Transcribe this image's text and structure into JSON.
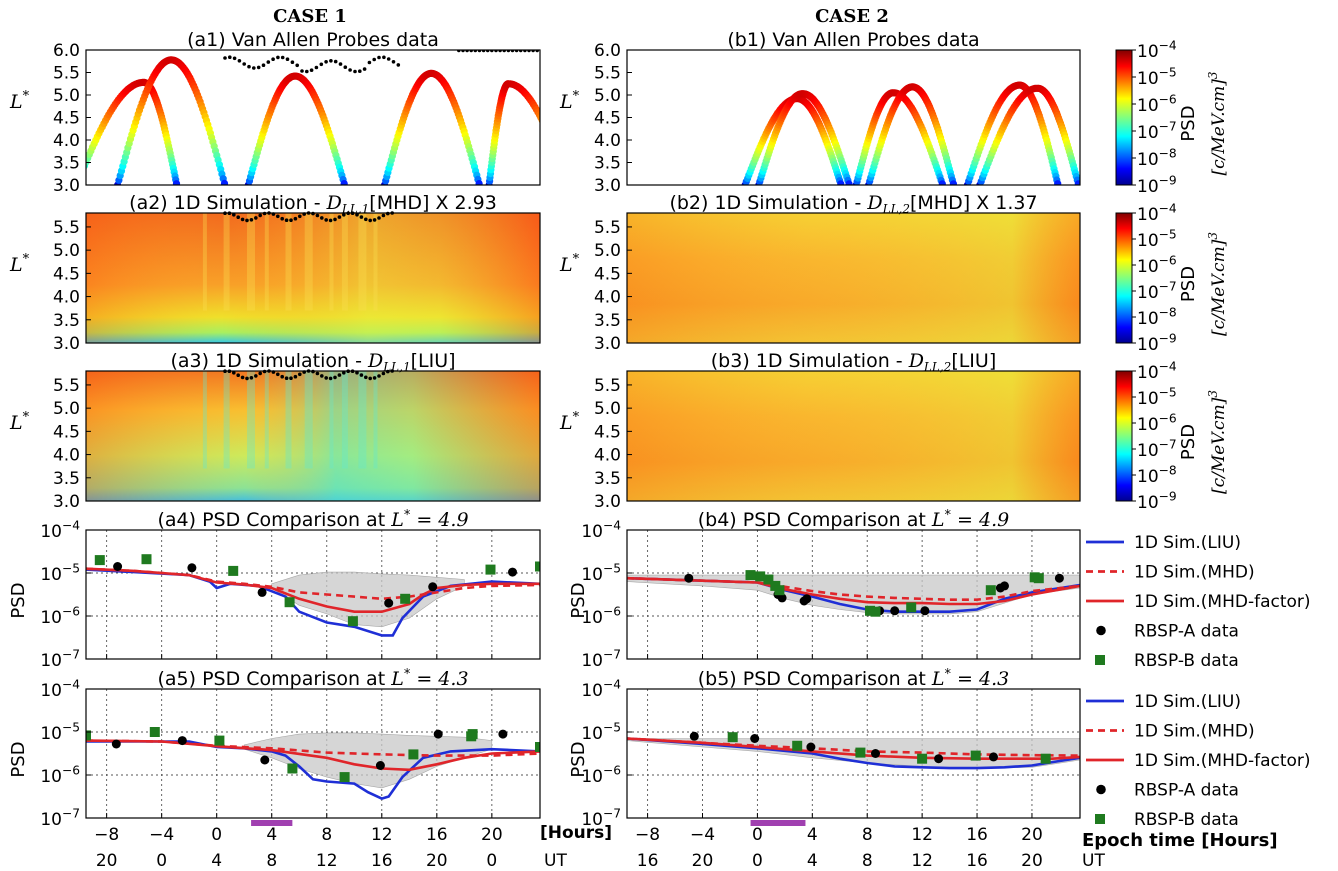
{
  "case_headers": [
    "CASE 1",
    "CASE 2"
  ],
  "colorbar": {
    "label": "PSD",
    "units": "[c/MeV.cm]^3",
    "ticks": [
      "10-4",
      "10-5",
      "10-6",
      "10-7",
      "10-8",
      "10-9"
    ]
  },
  "legend": {
    "entries": [
      {
        "label": "1D Sim.(LIU)",
        "color": "#1f2fd6",
        "style": "solid"
      },
      {
        "label": "1D Sim.(MHD)",
        "color": "#e0252a",
        "style": "dashed"
      },
      {
        "label": "1D Sim.(MHD-factor)",
        "color": "#e0252a",
        "style": "solid"
      },
      {
        "label": "RBSP-A data",
        "color": "#000000",
        "style": "circle"
      },
      {
        "label": "RBSP-B data",
        "color": "#1f7a1f",
        "style": "square"
      }
    ]
  },
  "axis_labels": {
    "lstar": "L*",
    "psd": "PSD",
    "hours_left": "[Hours]",
    "epoch_right": "Epoch time [Hours]",
    "ut_left": "UT",
    "ut_right": "UT"
  },
  "chart_data": [
    {
      "id": "a1",
      "type": "scatter",
      "title": "(a1) Van Allen Probes data",
      "ylabel": "L*",
      "ylim": [
        3.0,
        6.0
      ],
      "y_ticks": [
        "6.0",
        "5.5",
        "5.0",
        "4.5",
        "4.0",
        "3.5",
        "3.0"
      ],
      "x_range": [
        -9.5,
        23.5
      ],
      "orbit_apexes": [
        {
          "start": -10.2,
          "apex": -5.3,
          "end": -2.9,
          "peak": 5.28
        },
        {
          "start": -7.2,
          "apex": -3.3,
          "end": 0.6,
          "peak": 5.78
        },
        {
          "start": 2.3,
          "apex": 5.7,
          "end": 9.3,
          "peak": 5.42
        },
        {
          "start": 12.2,
          "apex": 15.6,
          "end": 19.1,
          "peak": 5.48
        },
        {
          "start": 19.8,
          "apex": 21.2,
          "end": 25.6,
          "peak": 5.25
        }
      ]
    },
    {
      "id": "b1",
      "type": "scatter",
      "title": "(b1) Van Allen Probes data",
      "ylabel": "L*",
      "ylim": [
        3.0,
        6.0
      ],
      "y_ticks": [
        "6.0",
        "5.5",
        "5.0",
        "4.5",
        "4.0",
        "3.5",
        "3.0"
      ],
      "x_range": [
        -9.5,
        23.5
      ],
      "orbit_apexes": [
        {
          "start": -0.9,
          "apex": 2.9,
          "end": 6.1,
          "peak": 4.92
        },
        {
          "start": 0.1,
          "apex": 3.3,
          "end": 6.7,
          "peak": 5.03
        },
        {
          "start": 7.2,
          "apex": 9.9,
          "end": 13.5,
          "peak": 5.05
        },
        {
          "start": 8.1,
          "apex": 11.3,
          "end": 14.3,
          "peak": 5.18
        },
        {
          "start": 15.3,
          "apex": 19.1,
          "end": 21.9,
          "peak": 5.22
        },
        {
          "start": 16.2,
          "apex": 20.4,
          "end": 23.4,
          "peak": 5.15
        }
      ]
    },
    {
      "id": "a2",
      "type": "heatmap",
      "title": "(a2) 1D Simulation - D_LL,1[MHD] X 2.93",
      "ylabel": "L*",
      "ylim": [
        3.0,
        5.8
      ],
      "y_ticks": [
        "5.5",
        "5.0",
        "4.5",
        "4.0",
        "3.5",
        "3.0"
      ]
    },
    {
      "id": "b2",
      "type": "heatmap",
      "title": "(b2) 1D Simulation - D_LL,2[MHD] X 1.37",
      "ylabel": "L*",
      "ylim": [
        3.0,
        5.8
      ],
      "y_ticks": [
        "5.5",
        "5.0",
        "4.5",
        "4.0",
        "3.5",
        "3.0"
      ]
    },
    {
      "id": "a3",
      "type": "heatmap",
      "title": "(a3) 1D Simulation - D_LL,1[LIU]",
      "ylabel": "L*",
      "ylim": [
        3.0,
        5.8
      ],
      "y_ticks": [
        "5.5",
        "5.0",
        "4.5",
        "4.0",
        "3.5",
        "3.0"
      ]
    },
    {
      "id": "b3",
      "type": "heatmap",
      "title": "(b3) 1D Simulation - D_LL,2[LIU]",
      "ylabel": "L*",
      "ylim": [
        3.0,
        5.8
      ],
      "y_ticks": [
        "5.5",
        "5.0",
        "4.5",
        "4.0",
        "3.5",
        "3.0"
      ]
    },
    {
      "id": "a4",
      "type": "line",
      "title": "(a4) PSD Comparison at L* = 4.9",
      "ylabel": "PSD",
      "y_log": true,
      "ylim_exp": [
        -7,
        -4
      ],
      "y_ticks": [
        "10-4",
        "10-5",
        "10-6",
        "10-7"
      ],
      "x_range": [
        -9.5,
        23.5
      ],
      "series": [
        {
          "name": "1D Sim.(LIU)",
          "x": [
            -9.5,
            -6,
            -2,
            -0.5,
            0,
            1,
            3,
            5,
            6,
            8,
            10,
            12,
            12.8,
            13.5,
            15,
            17,
            20,
            23.5
          ],
          "y_exp": [
            -4.92,
            -4.98,
            -5.05,
            -5.2,
            -5.35,
            -5.25,
            -5.3,
            -5.55,
            -5.9,
            -6.15,
            -6.25,
            -6.45,
            -6.45,
            -6.05,
            -5.55,
            -5.3,
            -5.2,
            -5.25
          ]
        },
        {
          "name": "1D Sim.(MHD)",
          "x": [
            -9.5,
            -6,
            -2,
            0,
            2,
            4,
            6,
            8,
            10,
            12,
            14,
            16,
            18,
            20,
            23.5
          ],
          "y_exp": [
            -4.9,
            -4.95,
            -5.05,
            -5.2,
            -5.25,
            -5.32,
            -5.45,
            -5.5,
            -5.55,
            -5.6,
            -5.55,
            -5.45,
            -5.35,
            -5.3,
            -5.28
          ]
        },
        {
          "name": "1D Sim.(MHD-factor)",
          "x": [
            -9.5,
            -6,
            -2,
            0,
            2,
            4,
            6,
            8,
            10,
            12,
            14,
            15,
            16,
            18,
            20,
            23.5
          ],
          "y_exp": [
            -4.9,
            -4.95,
            -5.05,
            -5.22,
            -5.27,
            -5.35,
            -5.6,
            -5.78,
            -5.9,
            -5.9,
            -5.72,
            -5.5,
            -5.35,
            -5.28,
            -5.25,
            -5.25
          ]
        },
        {
          "name": "RBSP-A data",
          "x": [
            -7.2,
            -1.8,
            3.3,
            12.5,
            15.7,
            21.5
          ],
          "y_exp": [
            -4.85,
            -4.88,
            -5.45,
            -5.7,
            -5.32,
            -4.98
          ]
        },
        {
          "name": "RBSP-B data",
          "x": [
            -8.5,
            -5.1,
            1.2,
            5.3,
            9.9,
            13.7,
            19.9,
            23.5
          ],
          "y_exp": [
            -4.7,
            -4.68,
            -4.95,
            -5.68,
            -6.12,
            -5.6,
            -4.92,
            -4.85
          ]
        }
      ],
      "band": {
        "x": [
          4,
          6,
          8,
          10,
          12,
          14,
          16,
          18
        ],
        "upper": [
          -5.25,
          -5.05,
          -4.98,
          -4.98,
          -5.02,
          -5.05,
          -5.1,
          -5.15
        ],
        "lower": [
          -5.35,
          -5.75,
          -5.95,
          -6.2,
          -6.25,
          -6.05,
          -5.6,
          -5.3
        ]
      }
    },
    {
      "id": "b4",
      "type": "line",
      "title": "(b4) PSD Comparison at L* = 4.9",
      "ylabel": "PSD",
      "y_log": true,
      "ylim_exp": [
        -7,
        -4
      ],
      "y_ticks": [
        "10-4",
        "10-5",
        "10-6",
        "10-7"
      ],
      "x_range": [
        -9.5,
        23.5
      ],
      "series": [
        {
          "name": "1D Sim.(LIU)",
          "x": [
            -9.5,
            -4,
            0,
            2,
            4,
            6,
            8,
            10,
            12,
            14,
            16,
            18,
            20,
            23.5
          ],
          "y_exp": [
            -5.12,
            -5.18,
            -5.22,
            -5.4,
            -5.55,
            -5.72,
            -5.85,
            -5.9,
            -5.9,
            -5.9,
            -5.85,
            -5.6,
            -5.45,
            -5.28
          ]
        },
        {
          "name": "1D Sim.(MHD)",
          "x": [
            -9.5,
            -4,
            0,
            2,
            4,
            6,
            8,
            10,
            12,
            14,
            16,
            18,
            20,
            23.5
          ],
          "y_exp": [
            -5.12,
            -5.18,
            -5.22,
            -5.32,
            -5.42,
            -5.5,
            -5.55,
            -5.58,
            -5.6,
            -5.62,
            -5.62,
            -5.55,
            -5.42,
            -5.3
          ]
        },
        {
          "name": "1D Sim.(MHD-factor)",
          "x": [
            -9.5,
            -4,
            0,
            2,
            4,
            6,
            8,
            10,
            12,
            14,
            16,
            18,
            20,
            23.5
          ],
          "y_exp": [
            -5.12,
            -5.18,
            -5.22,
            -5.38,
            -5.5,
            -5.6,
            -5.68,
            -5.7,
            -5.7,
            -5.72,
            -5.72,
            -5.65,
            -5.5,
            -5.3
          ]
        },
        {
          "name": "RBSP-A data",
          "x": [
            -5,
            1.5,
            1.8,
            3.4,
            3.6,
            8.9,
            10,
            12.2,
            17.7,
            18,
            22
          ],
          "y_exp": [
            -5.12,
            -5.5,
            -5.58,
            -5.65,
            -5.6,
            -5.88,
            -5.88,
            -5.88,
            -5.35,
            -5.3,
            -5.12
          ]
        },
        {
          "name": "RBSP-B data",
          "x": [
            -0.5,
            0.2,
            0.8,
            1.3,
            1.6,
            8.2,
            8.6,
            11.2,
            17,
            20.2,
            20.5
          ],
          "y_exp": [
            -5.05,
            -5.08,
            -5.15,
            -5.3,
            -5.4,
            -5.88,
            -5.9,
            -5.8,
            -5.4,
            -5.1,
            -5.12
          ]
        }
      ],
      "band": {
        "x": [
          -9.5,
          -4,
          0,
          2,
          4,
          6,
          8,
          10,
          12,
          14,
          16,
          18,
          20,
          23.5
        ],
        "upper": [
          -5.05,
          -5.05,
          -5.05,
          -5.05,
          -5.05,
          -5.05,
          -5.05,
          -5.05,
          -5.05,
          -5.05,
          -5.05,
          -5.05,
          -5.05,
          -5.05
        ],
        "lower": [
          -5.2,
          -5.3,
          -5.4,
          -5.6,
          -5.75,
          -5.85,
          -5.92,
          -5.95,
          -5.95,
          -5.95,
          -5.9,
          -5.7,
          -5.5,
          -5.35
        ]
      }
    },
    {
      "id": "a5",
      "type": "line",
      "title": "(a5) PSD Comparison at L* = 4.3",
      "ylabel": "PSD",
      "y_log": true,
      "ylim_exp": [
        -7,
        -4
      ],
      "y_ticks": [
        "10-4",
        "10-5",
        "10-6",
        "10-7"
      ],
      "x_range": [
        -9.5,
        23.5
      ],
      "series": [
        {
          "name": "1D Sim.(LIU)",
          "x": [
            -9.5,
            -6,
            -2,
            0,
            2,
            4,
            5,
            6,
            7,
            8,
            10,
            11,
            12,
            12.5,
            13.5,
            15,
            17,
            20,
            23.5
          ],
          "y_exp": [
            -5.22,
            -5.22,
            -5.22,
            -5.35,
            -5.38,
            -5.45,
            -5.55,
            -5.8,
            -6.1,
            -6.15,
            -6.2,
            -6.4,
            -6.55,
            -6.5,
            -6.05,
            -5.6,
            -5.45,
            -5.4,
            -5.45
          ]
        },
        {
          "name": "1D Sim.(MHD)",
          "x": [
            -9.5,
            -4,
            0,
            4,
            8,
            12,
            16,
            20,
            23.5
          ],
          "y_exp": [
            -5.2,
            -5.22,
            -5.32,
            -5.38,
            -5.48,
            -5.52,
            -5.55,
            -5.55,
            -5.5
          ]
        },
        {
          "name": "1D Sim.(MHD-factor)",
          "x": [
            -9.5,
            -4,
            0,
            4,
            8,
            10,
            12,
            14,
            16,
            18,
            20,
            23.5
          ],
          "y_exp": [
            -5.2,
            -5.22,
            -5.33,
            -5.42,
            -5.6,
            -5.75,
            -5.85,
            -5.88,
            -5.75,
            -5.6,
            -5.5,
            -5.45
          ]
        },
        {
          "name": "RBSP-A data",
          "x": [
            -7.3,
            -2.5,
            3.5,
            11.9,
            16.1,
            20.8
          ],
          "y_exp": [
            -5.28,
            -5.2,
            -5.65,
            -5.78,
            -5.05,
            -5.05
          ]
        },
        {
          "name": "RBSP-B data",
          "x": [
            -9.5,
            -4.5,
            0.2,
            5.5,
            9.3,
            14.3,
            18.5,
            18.6,
            23.5
          ],
          "y_exp": [
            -5.08,
            -5.0,
            -5.2,
            -5.85,
            -6.05,
            -5.52,
            -5.1,
            -5.05,
            -5.35
          ]
        }
      ],
      "band": {
        "x": [
          2,
          4,
          6,
          8,
          10,
          12,
          14,
          16,
          18,
          20
        ],
        "upper": [
          -5.3,
          -5.15,
          -5.05,
          -5.02,
          -5.02,
          -5.05,
          -5.08,
          -5.1,
          -5.12,
          -5.2
        ],
        "lower": [
          -5.4,
          -5.6,
          -5.85,
          -6.05,
          -6.2,
          -6.3,
          -6.1,
          -5.8,
          -5.6,
          -5.4
        ]
      }
    },
    {
      "id": "b5",
      "type": "line",
      "title": "(b5) PSD Comparison at L* = 4.3",
      "ylabel": "PSD",
      "y_log": true,
      "ylim_exp": [
        -7,
        -4
      ],
      "y_ticks": [
        "10-4",
        "10-5",
        "10-6",
        "10-7"
      ],
      "x_range": [
        -9.5,
        23.5
      ],
      "series": [
        {
          "name": "1D Sim.(LIU)",
          "x": [
            -9.5,
            -4,
            0,
            4,
            6,
            8,
            10,
            12,
            14,
            16,
            18,
            20,
            21.5,
            23.5
          ],
          "y_exp": [
            -5.15,
            -5.28,
            -5.38,
            -5.5,
            -5.62,
            -5.72,
            -5.8,
            -5.82,
            -5.84,
            -5.84,
            -5.82,
            -5.78,
            -5.7,
            -5.6
          ]
        },
        {
          "name": "1D Sim.(MHD)",
          "x": [
            -9.5,
            -4,
            0,
            4,
            8,
            12,
            16,
            20,
            23.5
          ],
          "y_exp": [
            -5.15,
            -5.25,
            -5.32,
            -5.38,
            -5.45,
            -5.48,
            -5.52,
            -5.54,
            -5.55
          ]
        },
        {
          "name": "1D Sim.(MHD-factor)",
          "x": [
            -9.5,
            -4,
            0,
            4,
            8,
            12,
            16,
            20,
            21.5,
            23.5
          ],
          "y_exp": [
            -5.15,
            -5.25,
            -5.35,
            -5.45,
            -5.55,
            -5.6,
            -5.62,
            -5.62,
            -5.62,
            -5.58
          ]
        },
        {
          "name": "RBSP-A data",
          "x": [
            -4.6,
            -0.2,
            3.9,
            8.6,
            13.2,
            17.2,
            21
          ],
          "y_exp": [
            -5.1,
            -5.15,
            -5.35,
            -5.5,
            -5.62,
            -5.58,
            -5.62
          ]
        },
        {
          "name": "RBSP-B data",
          "x": [
            -1.8,
            2.9,
            7.5,
            12,
            15.9,
            21
          ],
          "y_exp": [
            -5.12,
            -5.32,
            -5.48,
            -5.62,
            -5.55,
            -5.62
          ]
        }
      ],
      "band": {
        "x": [
          -9.5,
          -4,
          0,
          4,
          8,
          12,
          16,
          20,
          23.5
        ],
        "upper": [
          -5.15,
          -5.15,
          -5.15,
          -5.15,
          -5.15,
          -5.15,
          -5.15,
          -5.15,
          -5.15
        ],
        "lower": [
          -5.2,
          -5.35,
          -5.45,
          -5.6,
          -5.72,
          -5.8,
          -5.85,
          -5.82,
          -5.65
        ]
      }
    }
  ],
  "x_axis_left": {
    "hour_ticks": [
      "-8",
      "-4",
      "0",
      "4",
      "8",
      "12",
      "16",
      "20"
    ],
    "ut_ticks": [
      "20",
      "0",
      "4",
      "8",
      "12",
      "16",
      "20",
      "0"
    ],
    "storm_bar_hours": [
      2.5,
      5.5
    ]
  },
  "x_axis_right": {
    "hour_ticks": [
      "-8",
      "-4",
      "0",
      "4",
      "8",
      "12",
      "16",
      "20"
    ],
    "ut_ticks": [
      "16",
      "20",
      "0",
      "4",
      "8",
      "12",
      "16",
      "20"
    ],
    "storm_bar_hours": [
      -0.5,
      3.5
    ]
  }
}
